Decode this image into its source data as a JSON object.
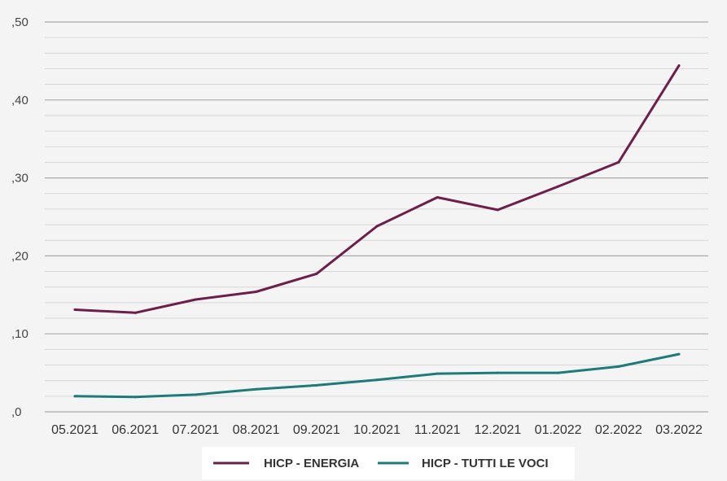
{
  "chart_data": {
    "type": "line",
    "title": "",
    "xlabel": "",
    "ylabel": "",
    "categories": [
      "05.2021",
      "06.2021",
      "07.2021",
      "08.2021",
      "09.2021",
      "10.2021",
      "11.2021",
      "12.2021",
      "01.2022",
      "02.2022",
      "03.2022"
    ],
    "y_ticks": [
      ",0",
      ",10",
      ",20",
      ",30",
      ",40",
      ",50"
    ],
    "y_tick_values": [
      0,
      0.1,
      0.2,
      0.3,
      0.4,
      0.5
    ],
    "ylim": [
      0,
      0.5
    ],
    "grid": true,
    "legend_position": "bottom-center",
    "series": [
      {
        "name": "HICP - ENERGIA",
        "color": "#6b1f4a",
        "values": [
          0.131,
          0.127,
          0.144,
          0.154,
          0.177,
          0.238,
          0.275,
          0.259,
          0.289,
          0.32,
          0.444
        ]
      },
      {
        "name": "HICP - TUTTI LE VOCI",
        "color": "#1f7a7a",
        "values": [
          0.02,
          0.019,
          0.022,
          0.029,
          0.034,
          0.041,
          0.049,
          0.05,
          0.05,
          0.058,
          0.074
        ]
      }
    ]
  }
}
